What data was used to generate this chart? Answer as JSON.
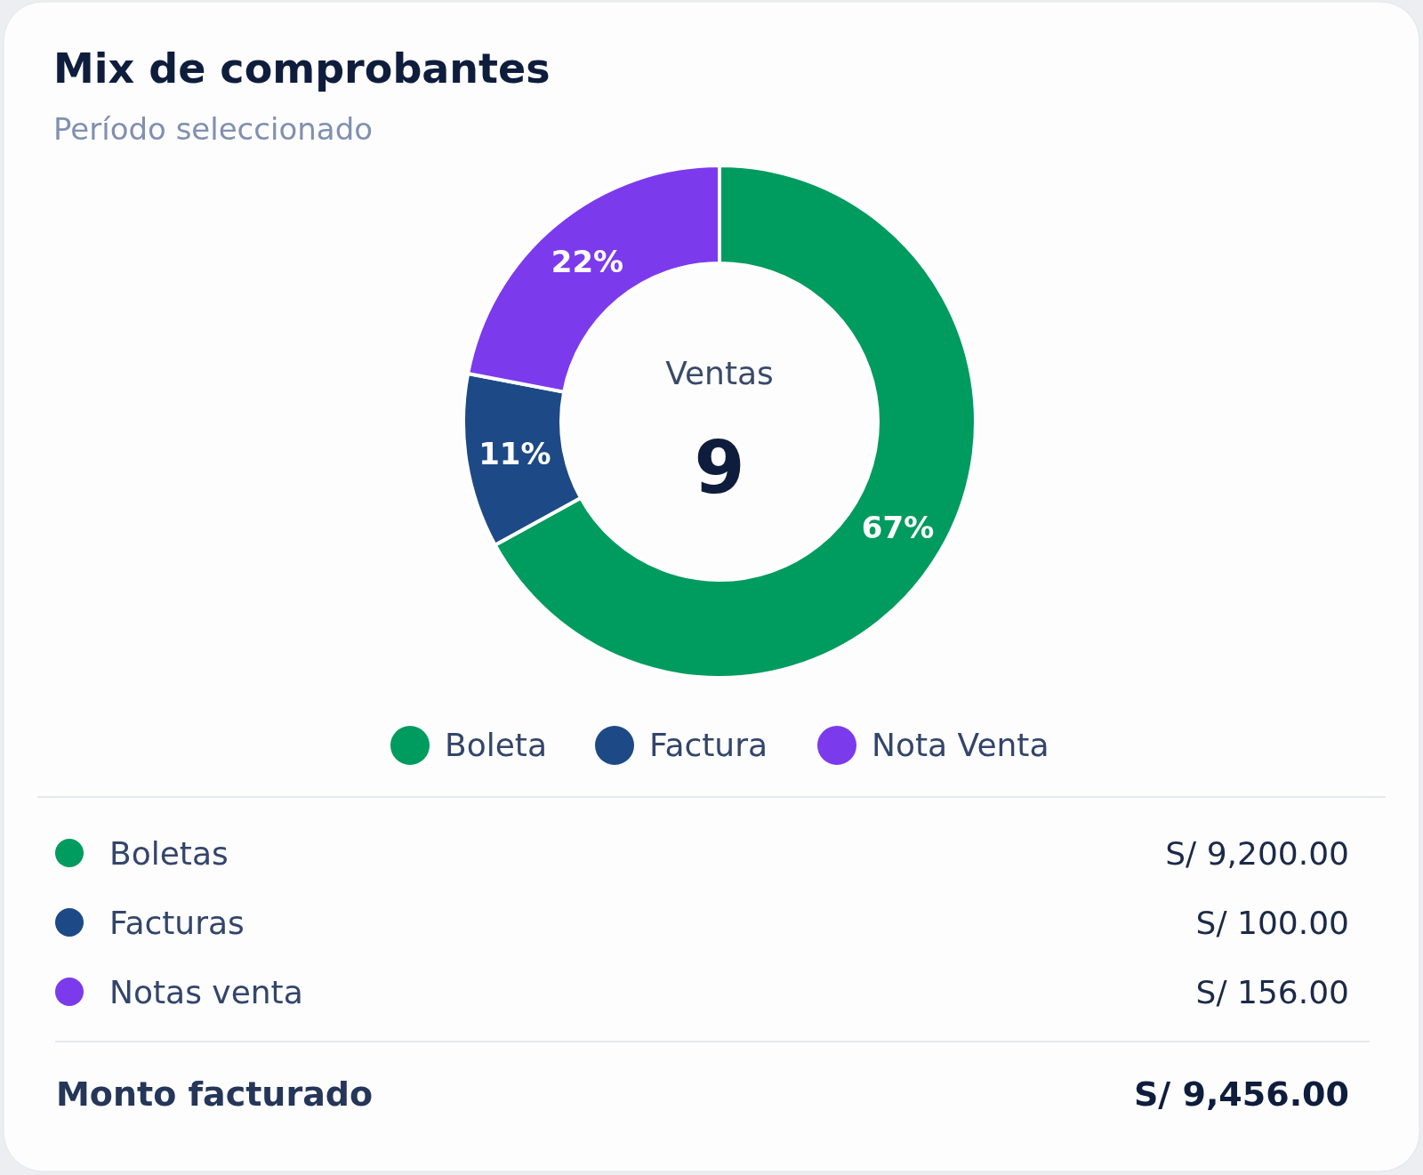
{
  "chart_data": {
    "type": "donut",
    "title": "Mix de comprobantes",
    "subtitle": "Período seleccionado",
    "categories": [
      "Boleta",
      "Factura",
      "Nota Venta"
    ],
    "values": [
      67,
      11,
      22
    ],
    "value_labels": [
      "67%",
      "11%",
      "22%"
    ],
    "colors": [
      "#009b5e",
      "#1d4a86",
      "#7c3aed"
    ],
    "legend": "bottom",
    "annotations": [
      "Ventas",
      "9",
      "Boletas",
      "S/ 9,200.00",
      "Facturas",
      "S/ 100.00",
      "Notas venta",
      "S/ 156.00",
      "Monto facturado",
      "S/ 9,456.00"
    ]
  }
}
